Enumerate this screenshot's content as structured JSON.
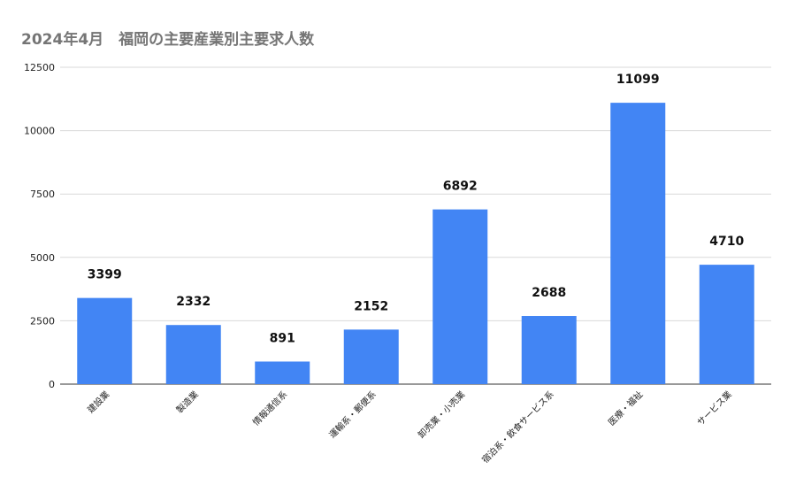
{
  "chart_data": {
    "type": "bar",
    "title": "2024年4月　福岡の主要産業別主要求人数",
    "xlabel": "",
    "ylabel": "",
    "categories": [
      "建設業",
      "製造業",
      "情報通信系",
      "運輸系・郵便系",
      "卸売業・小売業",
      "宿泊系・飲食サービス系",
      "医療・福祉",
      "サービス業"
    ],
    "values": [
      3399,
      2332,
      891,
      2152,
      6892,
      2688,
      11099,
      4710
    ],
    "ylim": [
      0,
      12500
    ],
    "yticks": [
      "0",
      "2500",
      "5000",
      "7500",
      "10000",
      "12500"
    ],
    "grid": true,
    "legend": "none",
    "bar_color": "#4285f4",
    "data_labels": true
  }
}
